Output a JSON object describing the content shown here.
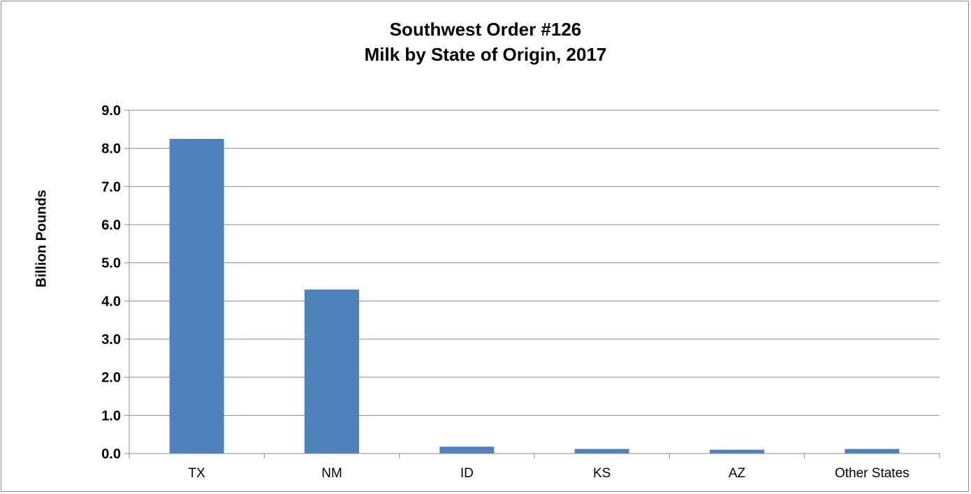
{
  "chart_data": {
    "type": "bar",
    "title": "Southwest Order #126",
    "subtitle": "Milk by State of Origin, 2017",
    "xlabel": "",
    "ylabel": "Billion Pounds",
    "categories": [
      "TX",
      "NM",
      "ID",
      "KS",
      "AZ",
      "Other States"
    ],
    "values": [
      8.25,
      4.3,
      0.18,
      0.12,
      0.1,
      0.12
    ],
    "ylim": [
      0,
      9
    ],
    "yticks": [
      "0.0",
      "1.0",
      "2.0",
      "3.0",
      "4.0",
      "5.0",
      "6.0",
      "7.0",
      "8.0",
      "9.0"
    ],
    "grid": true,
    "legend": "none",
    "bar_color": "#4f81bd"
  }
}
